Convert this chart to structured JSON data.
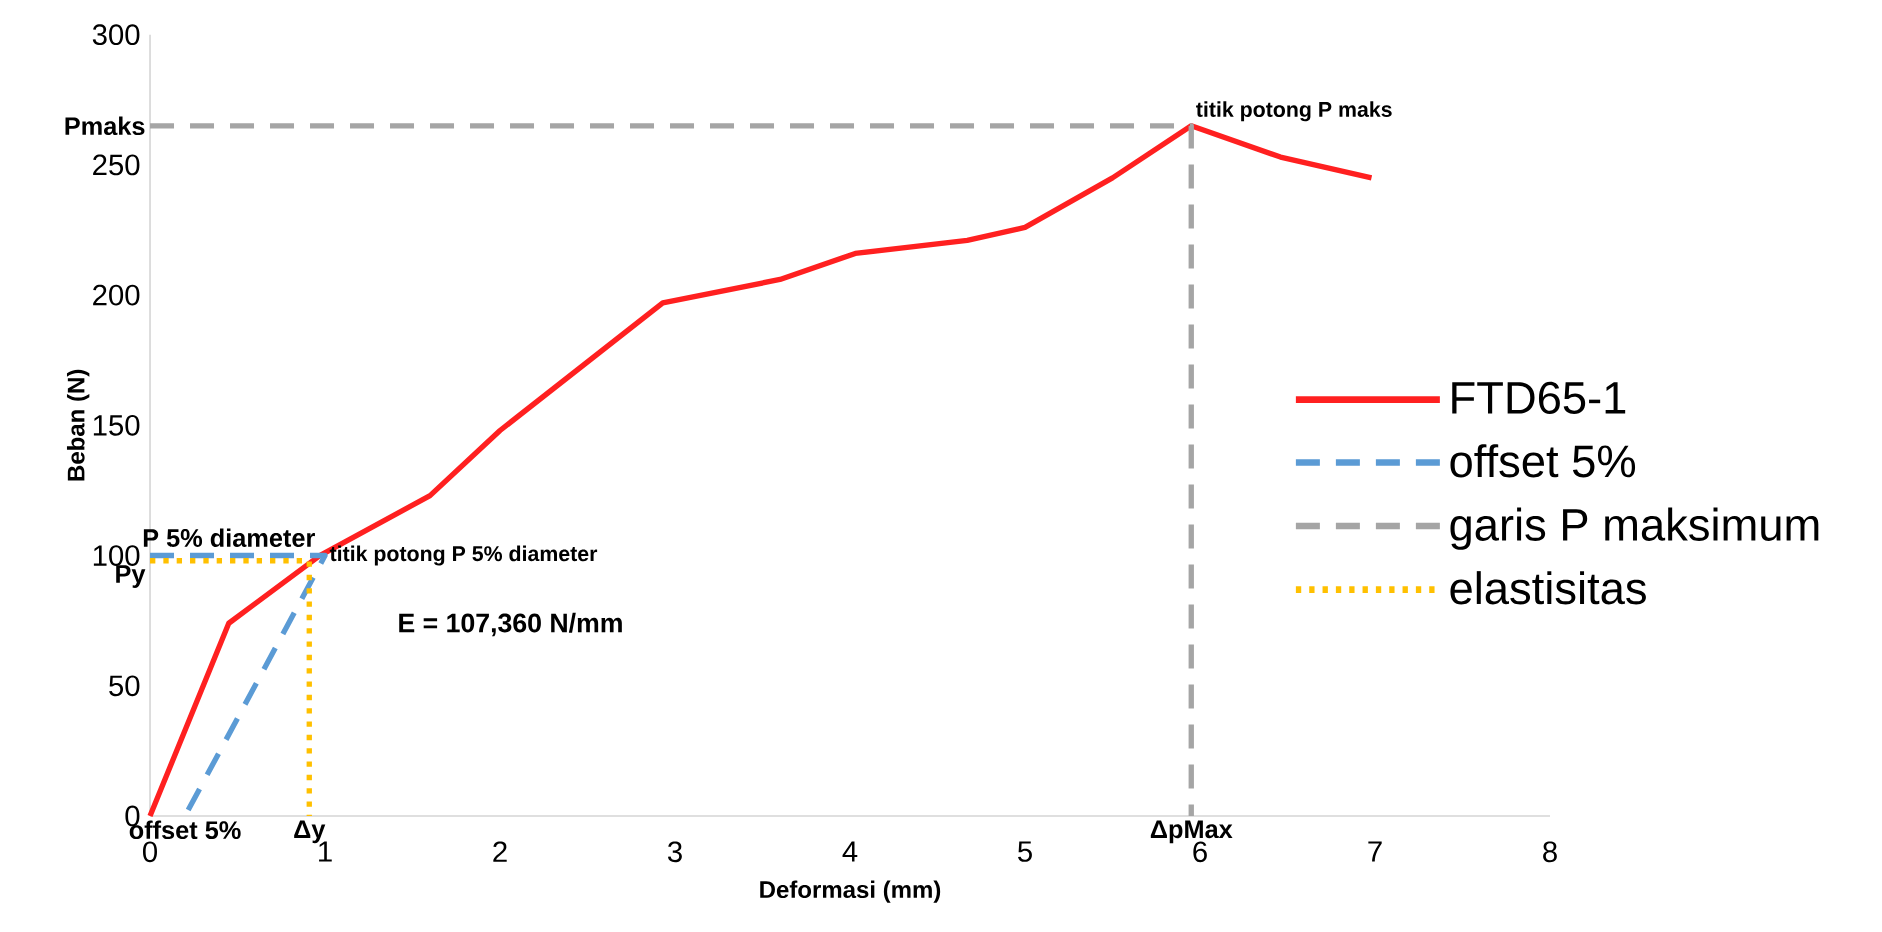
{
  "chart_data": {
    "type": "line",
    "xlabel": "Deformasi (mm)",
    "ylabel": "Beban (N)",
    "xlim": [
      0,
      8
    ],
    "xticks": [
      0,
      1,
      2,
      3,
      4,
      5,
      6,
      7,
      8
    ],
    "ylim": [
      0,
      300
    ],
    "yticks": [
      0,
      50,
      100,
      150,
      200,
      250,
      300
    ],
    "legend": "right",
    "series": [
      {
        "name": "FTD65-1",
        "color": "#ff2020",
        "line_style": "solid",
        "x": [
          0,
          0.45,
          0.97,
          1.6,
          2.0,
          2.93,
          3.6,
          4.03,
          4.67,
          5.0,
          5.5,
          5.95,
          6.46,
          6.98
        ],
        "values": [
          0,
          74,
          100,
          123,
          148,
          197,
          206,
          216,
          221,
          226,
          245,
          265,
          253,
          245
        ]
      },
      {
        "name": "offset 5%",
        "color": "#5b9bd5",
        "line_style": "dashed",
        "x": [
          0,
          1.0,
          0.2
        ],
        "values": [
          100,
          100,
          0
        ]
      },
      {
        "name": "garis P maksimum",
        "color": "#a5a5a5",
        "line_style": "dashed",
        "x": [
          0,
          5.95,
          5.95
        ],
        "values": [
          265,
          265,
          0
        ]
      },
      {
        "name": "elastisitas",
        "color": "#ffc000",
        "line_style": "dotted",
        "x": [
          0,
          0.91,
          0.91
        ],
        "values": [
          98,
          98,
          0
        ]
      }
    ],
    "annotations": [
      {
        "text": "Pmaks",
        "x": 0,
        "y": 265
      },
      {
        "text": "P 5% diameter",
        "x": 0.45,
        "y": 100
      },
      {
        "text": "Py",
        "x": 0,
        "y": 98
      },
      {
        "text": "titik potong P 5% diameter",
        "x": 1.0,
        "y": 100
      },
      "E = 107,360  N/mm",
      {
        "text": "offset 5%",
        "x": 0.2,
        "y": 0
      },
      {
        "text": "Δy",
        "x": 0.91,
        "y": 0
      },
      {
        "text": "ΔpMax",
        "x": 5.95,
        "y": 0
      },
      {
        "text": "titik potong P maks",
        "x": 5.95,
        "y": 265
      }
    ]
  }
}
